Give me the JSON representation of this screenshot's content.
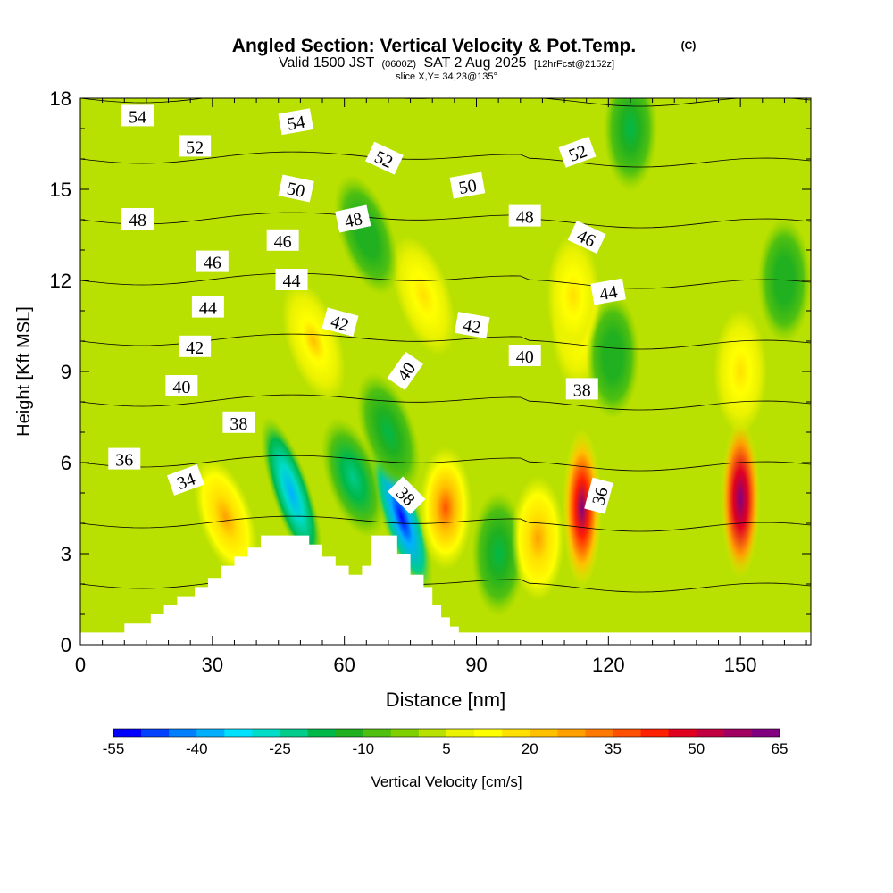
{
  "chart_data": {
    "type": "heatmap",
    "title": "Angled Section: Vertical Velocity & Pot.Temp.",
    "title_mark": "(C)",
    "subtitle_parts": [
      "Valid 1500 JST",
      "(0600Z)",
      "SAT 2 Aug 2025",
      "[12hrFcst@2152z]"
    ],
    "slice_label": "slice X,Y= 34,23@135°",
    "xlabel": "Distance [nm]",
    "ylabel": "Height [Kft MSL]",
    "xlim": [
      0,
      166
    ],
    "ylim": [
      0,
      18
    ],
    "xticks": [
      0,
      30,
      60,
      90,
      120,
      150
    ],
    "yticks": [
      0,
      3,
      6,
      9,
      12,
      15,
      18
    ],
    "colorbar": {
      "label": "Vertical Velocity [cm/s]",
      "tick_labels": [
        -55,
        -40,
        -25,
        -10,
        5,
        20,
        35,
        50,
        65
      ],
      "min": -55,
      "max": 65,
      "step": 5,
      "colors": [
        "#0000ff",
        "#0040ff",
        "#0080ff",
        "#00b0ff",
        "#00e0ff",
        "#00dcc8",
        "#00cc8c",
        "#00b84a",
        "#20b020",
        "#50c010",
        "#80d000",
        "#b8e000",
        "#eaf200",
        "#ffff00",
        "#ffe000",
        "#ffc000",
        "#ffa000",
        "#ff7800",
        "#ff5000",
        "#ff2000",
        "#e00020",
        "#c00040",
        "#a00060",
        "#800080"
      ]
    },
    "velocity_cells": [
      {
        "x": 48,
        "y": 5.0,
        "w": -40
      },
      {
        "x": 62,
        "y": 5.5,
        "w": -25
      },
      {
        "x": 73,
        "y": 4.2,
        "w": -55
      },
      {
        "x": 70,
        "y": 7.0,
        "w": -20
      },
      {
        "x": 83,
        "y": 4.5,
        "w": 35
      },
      {
        "x": 95,
        "y": 3.0,
        "w": -20
      },
      {
        "x": 104,
        "y": 3.5,
        "w": 25
      },
      {
        "x": 114,
        "y": 4.5,
        "w": 60
      },
      {
        "x": 113,
        "y": 10.5,
        "w": 20
      },
      {
        "x": 121,
        "y": 9.5,
        "w": -15
      },
      {
        "x": 150,
        "y": 4.8,
        "w": 65
      },
      {
        "x": 150,
        "y": 9.0,
        "w": 15
      },
      {
        "x": 53,
        "y": 10.0,
        "w": 20
      },
      {
        "x": 78,
        "y": 11.5,
        "w": 15
      },
      {
        "x": 112,
        "y": 11.5,
        "w": 15
      },
      {
        "x": 33,
        "y": 4.2,
        "w": 25
      },
      {
        "x": 65,
        "y": 13.5,
        "w": -15
      },
      {
        "x": 125,
        "y": 17.0,
        "w": -20
      },
      {
        "x": 160,
        "y": 12.0,
        "w": -15
      }
    ],
    "terrain_profile": [
      [
        0,
        0.4
      ],
      [
        10,
        0.4
      ],
      [
        10,
        0.7
      ],
      [
        16,
        0.7
      ],
      [
        16,
        1.0
      ],
      [
        19,
        1.0
      ],
      [
        19,
        1.3
      ],
      [
        22,
        1.3
      ],
      [
        22,
        1.6
      ],
      [
        26,
        1.6
      ],
      [
        26,
        1.9
      ],
      [
        29,
        1.9
      ],
      [
        29,
        2.2
      ],
      [
        32,
        2.2
      ],
      [
        32,
        2.6
      ],
      [
        35,
        2.6
      ],
      [
        35,
        2.9
      ],
      [
        38,
        2.9
      ],
      [
        38,
        3.2
      ],
      [
        41,
        3.2
      ],
      [
        41,
        3.6
      ],
      [
        52,
        3.6
      ],
      [
        52,
        3.3
      ],
      [
        55,
        3.3
      ],
      [
        55,
        2.9
      ],
      [
        58,
        2.9
      ],
      [
        58,
        2.6
      ],
      [
        61,
        2.6
      ],
      [
        61,
        2.3
      ],
      [
        64,
        2.3
      ],
      [
        64,
        2.6
      ],
      [
        66,
        2.6
      ],
      [
        66,
        3.6
      ],
      [
        72,
        3.6
      ],
      [
        72,
        3.0
      ],
      [
        75,
        3.0
      ],
      [
        75,
        2.3
      ],
      [
        78,
        2.3
      ],
      [
        78,
        1.9
      ],
      [
        80,
        1.9
      ],
      [
        80,
        1.3
      ],
      [
        82,
        1.3
      ],
      [
        82,
        0.9
      ],
      [
        84,
        0.9
      ],
      [
        84,
        0.6
      ],
      [
        86,
        0.6
      ],
      [
        86,
        0.4
      ],
      [
        166,
        0.4
      ]
    ],
    "contours": [
      {
        "level": 34,
        "label": "34",
        "label_x": 24,
        "label_y": 5.4,
        "rot": -20
      },
      {
        "level": 36,
        "label": "36",
        "label_x": 10,
        "label_y": 6.1,
        "rot": 0
      },
      {
        "level": 38,
        "label": "38",
        "label_x": 36,
        "label_y": 7.3,
        "rot": 0
      },
      {
        "level": 40,
        "label": "40",
        "label_x": 23,
        "label_y": 8.5,
        "rot": 0
      },
      {
        "level": 42,
        "label": "42",
        "label_x": 26,
        "label_y": 9.8,
        "rot": 0
      },
      {
        "level": 44,
        "label": "44",
        "label_x": 29,
        "label_y": 11.1,
        "rot": 0
      },
      {
        "level": 46,
        "label": "46",
        "label_x": 30,
        "label_y": 12.6,
        "rot": 0
      },
      {
        "level": 48,
        "label": "48",
        "label_x": 13,
        "label_y": 14.0,
        "rot": 0
      },
      {
        "level": 50,
        "label": "50",
        "label_x": 49,
        "label_y": 15.0,
        "rot": 12
      },
      {
        "level": 52,
        "label": "52",
        "label_x": 26,
        "label_y": 16.4,
        "rot": 0
      },
      {
        "level": 54,
        "label": "54",
        "label_x": 13,
        "label_y": 17.4,
        "rot": 0
      }
    ],
    "extra_labels": [
      {
        "label": "54",
        "x": 49,
        "y": 17.2,
        "rot": -10
      },
      {
        "label": "52",
        "x": 69,
        "y": 16.0,
        "rot": 25
      },
      {
        "label": "52",
        "x": 113,
        "y": 16.2,
        "rot": -20
      },
      {
        "label": "50",
        "x": 88,
        "y": 15.1,
        "rot": -10
      },
      {
        "label": "48",
        "x": 62,
        "y": 14.0,
        "rot": -12
      },
      {
        "label": "48",
        "x": 101,
        "y": 14.1,
        "rot": 0
      },
      {
        "label": "46",
        "x": 46,
        "y": 13.3,
        "rot": 0
      },
      {
        "label": "46",
        "x": 115,
        "y": 13.4,
        "rot": 25
      },
      {
        "label": "44",
        "x": 48,
        "y": 12.0,
        "rot": 0
      },
      {
        "label": "44",
        "x": 120,
        "y": 11.6,
        "rot": -10
      },
      {
        "label": "42",
        "x": 59,
        "y": 10.6,
        "rot": 15
      },
      {
        "label": "42",
        "x": 89,
        "y": 10.5,
        "rot": 10
      },
      {
        "label": "40",
        "x": 74,
        "y": 9.0,
        "rot": -55
      },
      {
        "label": "40",
        "x": 101,
        "y": 9.5,
        "rot": 0
      },
      {
        "label": "38",
        "x": 114,
        "y": 8.4,
        "rot": 0
      },
      {
        "label": "38",
        "x": 74,
        "y": 4.9,
        "rot": 45
      },
      {
        "label": "36",
        "x": 118,
        "y": 4.9,
        "rot": -75
      }
    ]
  }
}
